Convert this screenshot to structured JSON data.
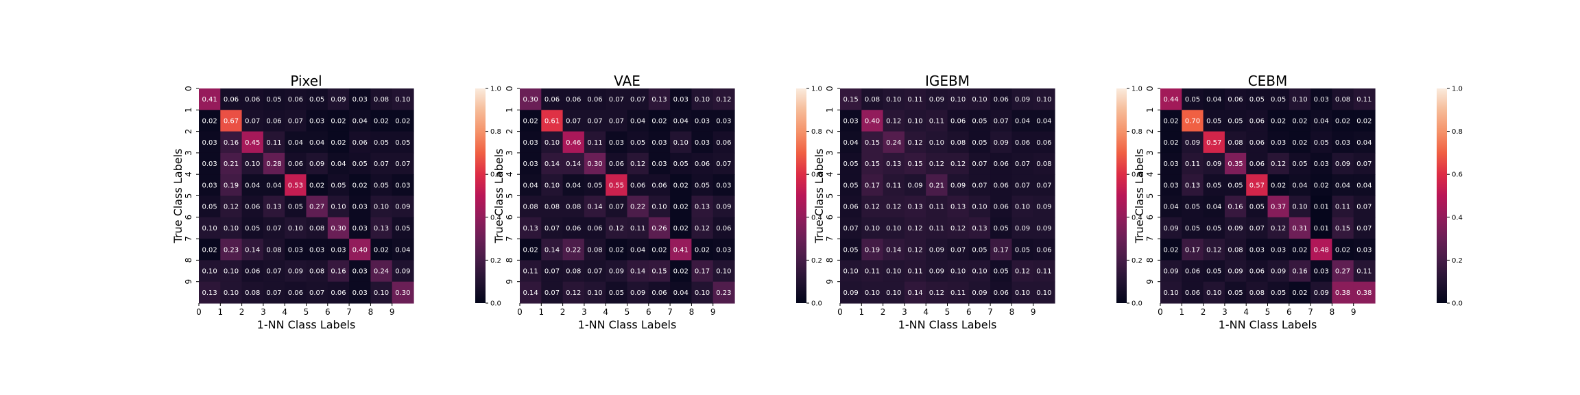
{
  "chart_data": [
    {
      "type": "heatmap",
      "title": "Pixel",
      "xlabel": "1-NN Class Labels",
      "ylabel": "True Class Labels",
      "x_tick_labels": [
        "0",
        "1",
        "2",
        "3",
        "4",
        "5",
        "6",
        "7",
        "8",
        "9"
      ],
      "y_tick_labels": [
        "0",
        "1",
        "2",
        "3",
        "4",
        "5",
        "6",
        "7",
        "8",
        "9"
      ],
      "colorbar_ticks": [
        "0.0",
        "0.2",
        "0.4",
        "0.6",
        "0.8",
        "1.0"
      ],
      "vmin": 0.0,
      "vmax": 1.0,
      "values": [
        [
          "0.41",
          "0.06",
          "0.06",
          "0.05",
          "0.06",
          "0.05",
          "0.09",
          "0.03",
          "0.08",
          "0.10"
        ],
        [
          "0.02",
          "0.67",
          "0.07",
          "0.06",
          "0.07",
          "0.03",
          "0.02",
          "0.04",
          "0.02",
          "0.02"
        ],
        [
          "0.03",
          "0.16",
          "0.45",
          "0.11",
          "0.04",
          "0.04",
          "0.02",
          "0.06",
          "0.05",
          "0.05"
        ],
        [
          "0.03",
          "0.21",
          "0.10",
          "0.28",
          "0.06",
          "0.09",
          "0.04",
          "0.05",
          "0.07",
          "0.07"
        ],
        [
          "0.03",
          "0.19",
          "0.04",
          "0.04",
          "0.53",
          "0.02",
          "0.05",
          "0.02",
          "0.05",
          "0.03"
        ],
        [
          "0.05",
          "0.12",
          "0.06",
          "0.13",
          "0.05",
          "0.27",
          "0.10",
          "0.03",
          "0.10",
          "0.09"
        ],
        [
          "0.10",
          "0.10",
          "0.05",
          "0.07",
          "0.10",
          "0.08",
          "0.30",
          "0.03",
          "0.13",
          "0.05"
        ],
        [
          "0.02",
          "0.23",
          "0.14",
          "0.08",
          "0.03",
          "0.03",
          "0.03",
          "0.40",
          "0.02",
          "0.04"
        ],
        [
          "0.10",
          "0.10",
          "0.06",
          "0.07",
          "0.09",
          "0.08",
          "0.16",
          "0.03",
          "0.24",
          "0.09"
        ],
        [
          "0.13",
          "0.10",
          "0.08",
          "0.07",
          "0.06",
          "0.07",
          "0.06",
          "0.03",
          "0.10",
          "0.30"
        ]
      ]
    },
    {
      "type": "heatmap",
      "title": "VAE",
      "xlabel": "1-NN Class Labels",
      "ylabel": "True Class Labels",
      "x_tick_labels": [
        "0",
        "1",
        "2",
        "3",
        "4",
        "5",
        "6",
        "7",
        "8",
        "9"
      ],
      "y_tick_labels": [
        "0",
        "1",
        "2",
        "3",
        "4",
        "5",
        "6",
        "7",
        "8",
        "9"
      ],
      "colorbar_ticks": [
        "0.0",
        "0.2",
        "0.4",
        "0.6",
        "0.8",
        "1.0"
      ],
      "vmin": 0.0,
      "vmax": 1.0,
      "values": [
        [
          "0.30",
          "0.06",
          "0.06",
          "0.06",
          "0.07",
          "0.07",
          "0.13",
          "0.03",
          "0.10",
          "0.12"
        ],
        [
          "0.02",
          "0.61",
          "0.07",
          "0.07",
          "0.07",
          "0.04",
          "0.02",
          "0.04",
          "0.03",
          "0.03"
        ],
        [
          "0.03",
          "0.10",
          "0.46",
          "0.11",
          "0.03",
          "0.05",
          "0.03",
          "0.10",
          "0.03",
          "0.06"
        ],
        [
          "0.03",
          "0.14",
          "0.14",
          "0.30",
          "0.06",
          "0.12",
          "0.03",
          "0.05",
          "0.06",
          "0.07"
        ],
        [
          "0.04",
          "0.10",
          "0.04",
          "0.05",
          "0.55",
          "0.06",
          "0.06",
          "0.02",
          "0.05",
          "0.03"
        ],
        [
          "0.08",
          "0.08",
          "0.08",
          "0.14",
          "0.07",
          "0.22",
          "0.10",
          "0.02",
          "0.13",
          "0.09"
        ],
        [
          "0.13",
          "0.07",
          "0.06",
          "0.06",
          "0.12",
          "0.11",
          "0.26",
          "0.02",
          "0.12",
          "0.06"
        ],
        [
          "0.02",
          "0.14",
          "0.22",
          "0.08",
          "0.02",
          "0.04",
          "0.02",
          "0.41",
          "0.02",
          "0.03"
        ],
        [
          "0.11",
          "0.07",
          "0.08",
          "0.07",
          "0.09",
          "0.14",
          "0.15",
          "0.02",
          "0.17",
          "0.10"
        ],
        [
          "0.14",
          "0.07",
          "0.12",
          "0.10",
          "0.05",
          "0.09",
          "0.06",
          "0.04",
          "0.10",
          "0.23"
        ]
      ]
    },
    {
      "type": "heatmap",
      "title": "IGEBM",
      "xlabel": "1-NN Class Labels",
      "ylabel": "True Class Labels",
      "x_tick_labels": [
        "0",
        "1",
        "2",
        "3",
        "4",
        "5",
        "6",
        "7",
        "8",
        "9"
      ],
      "y_tick_labels": [
        "0",
        "1",
        "2",
        "3",
        "4",
        "5",
        "6",
        "7",
        "8",
        "9"
      ],
      "colorbar_ticks": [
        "0.0",
        "0.2",
        "0.4",
        "0.6",
        "0.8",
        "1.0"
      ],
      "vmin": 0.0,
      "vmax": 1.0,
      "values": [
        [
          "0.15",
          "0.08",
          "0.10",
          "0.11",
          "0.09",
          "0.10",
          "0.10",
          "0.06",
          "0.09",
          "0.10"
        ],
        [
          "0.03",
          "0.40",
          "0.12",
          "0.10",
          "0.11",
          "0.06",
          "0.05",
          "0.07",
          "0.04",
          "0.04"
        ],
        [
          "0.04",
          "0.15",
          "0.24",
          "0.12",
          "0.10",
          "0.08",
          "0.05",
          "0.09",
          "0.06",
          "0.06"
        ],
        [
          "0.05",
          "0.15",
          "0.13",
          "0.15",
          "0.12",
          "0.12",
          "0.07",
          "0.06",
          "0.07",
          "0.08"
        ],
        [
          "0.05",
          "0.17",
          "0.11",
          "0.09",
          "0.21",
          "0.09",
          "0.07",
          "0.06",
          "0.07",
          "0.07"
        ],
        [
          "0.06",
          "0.12",
          "0.12",
          "0.13",
          "0.11",
          "0.13",
          "0.10",
          "0.06",
          "0.10",
          "0.09"
        ],
        [
          "0.07",
          "0.10",
          "0.10",
          "0.12",
          "0.11",
          "0.12",
          "0.13",
          "0.05",
          "0.09",
          "0.09"
        ],
        [
          "0.05",
          "0.19",
          "0.14",
          "0.12",
          "0.09",
          "0.07",
          "0.05",
          "0.17",
          "0.05",
          "0.06"
        ],
        [
          "0.10",
          "0.11",
          "0.10",
          "0.11",
          "0.09",
          "0.10",
          "0.10",
          "0.05",
          "0.12",
          "0.11"
        ],
        [
          "0.09",
          "0.10",
          "0.10",
          "0.14",
          "0.12",
          "0.11",
          "0.09",
          "0.06",
          "0.10",
          "0.10"
        ]
      ]
    },
    {
      "type": "heatmap",
      "title": "CEBM",
      "xlabel": "1-NN Class Labels",
      "ylabel": "True Class Labels",
      "x_tick_labels": [
        "0",
        "1",
        "2",
        "3",
        "4",
        "5",
        "6",
        "7",
        "8",
        "9"
      ],
      "y_tick_labels": [
        "0",
        "1",
        "2",
        "3",
        "4",
        "5",
        "6",
        "7",
        "8",
        "9"
      ],
      "colorbar_ticks": [
        "0.0",
        "0.2",
        "0.4",
        "0.6",
        "0.8",
        "1.0"
      ],
      "vmin": 0.0,
      "vmax": 1.0,
      "values": [
        [
          "0.44",
          "0.05",
          "0.04",
          "0.06",
          "0.05",
          "0.05",
          "0.10",
          "0.03",
          "0.08",
          "0.11"
        ],
        [
          "0.02",
          "0.70",
          "0.05",
          "0.05",
          "0.06",
          "0.02",
          "0.02",
          "0.04",
          "0.02",
          "0.02"
        ],
        [
          "0.02",
          "0.09",
          "0.57",
          "0.08",
          "0.06",
          "0.03",
          "0.02",
          "0.05",
          "0.03",
          "0.04"
        ],
        [
          "0.03",
          "0.11",
          "0.09",
          "0.35",
          "0.06",
          "0.12",
          "0.05",
          "0.03",
          "0.09",
          "0.07"
        ],
        [
          "0.03",
          "0.13",
          "0.05",
          "0.05",
          "0.57",
          "0.02",
          "0.04",
          "0.02",
          "0.04",
          "0.04"
        ],
        [
          "0.04",
          "0.05",
          "0.04",
          "0.16",
          "0.05",
          "0.37",
          "0.10",
          "0.01",
          "0.11",
          "0.07"
        ],
        [
          "0.09",
          "0.05",
          "0.05",
          "0.09",
          "0.07",
          "0.12",
          "0.31",
          "0.01",
          "0.15",
          "0.07"
        ],
        [
          "0.02",
          "0.17",
          "0.12",
          "0.08",
          "0.03",
          "0.03",
          "0.02",
          "0.48",
          "0.02",
          "0.03"
        ],
        [
          "0.09",
          "0.06",
          "0.05",
          "0.09",
          "0.06",
          "0.09",
          "0.16",
          "0.03",
          "0.27",
          "0.11"
        ],
        [
          "0.10",
          "0.06",
          "0.10",
          "0.05",
          "0.08",
          "0.05",
          "0.02",
          "0.09",
          "0.38",
          "0.38"
        ]
      ]
    }
  ]
}
